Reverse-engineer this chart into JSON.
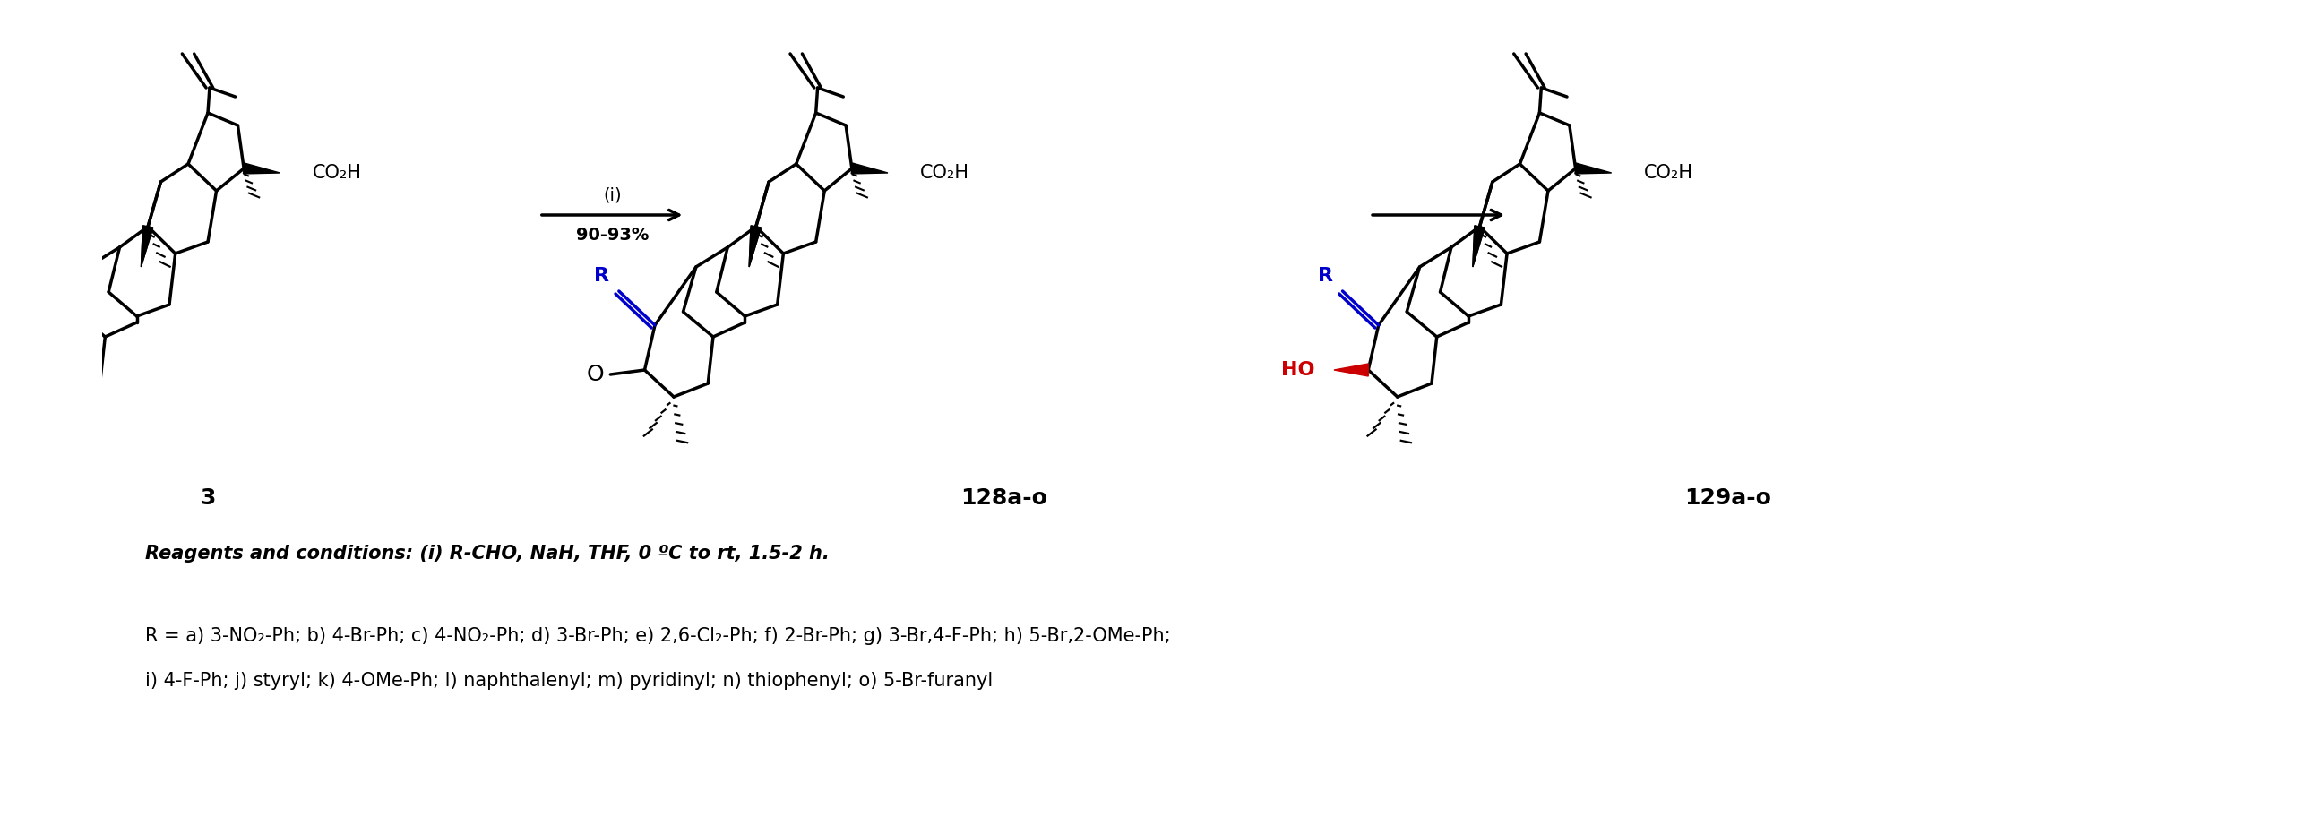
{
  "fig_width": 25.94,
  "fig_height": 9.31,
  "bg_color": "#ffffff",
  "lw": 2.5,
  "bond_color": "#000000",
  "blue": "#0000cc",
  "red": "#cc0000",
  "label3": "3",
  "label128": "128a-o",
  "label129": "129a-o",
  "arrow1_text1": "(i)",
  "arrow1_text2": "90-93%",
  "reagents": "Reagents and conditions: (i) R-CHO, NaH, THF, 0 ºC to rt, 1.5-2 h.",
  "rgroup1": "R = a) 3-NO₂-Ph; b) 4-Br-Ph; c) 4-NO₂-Ph; d) 3-Br-Ph; e) 2,6-Cl₂-Ph; f) 2-Br-Ph; g) 3-Br,4-F-Ph; h) 5-Br,2-OMe-Ph;",
  "rgroup2": "i) 4-F-Ph; j) styryl; k) 4-OMe-Ph; l) naphthalenyl; m) pyridinyl; n) thiophenyl; o) 5-Br-furanyl"
}
